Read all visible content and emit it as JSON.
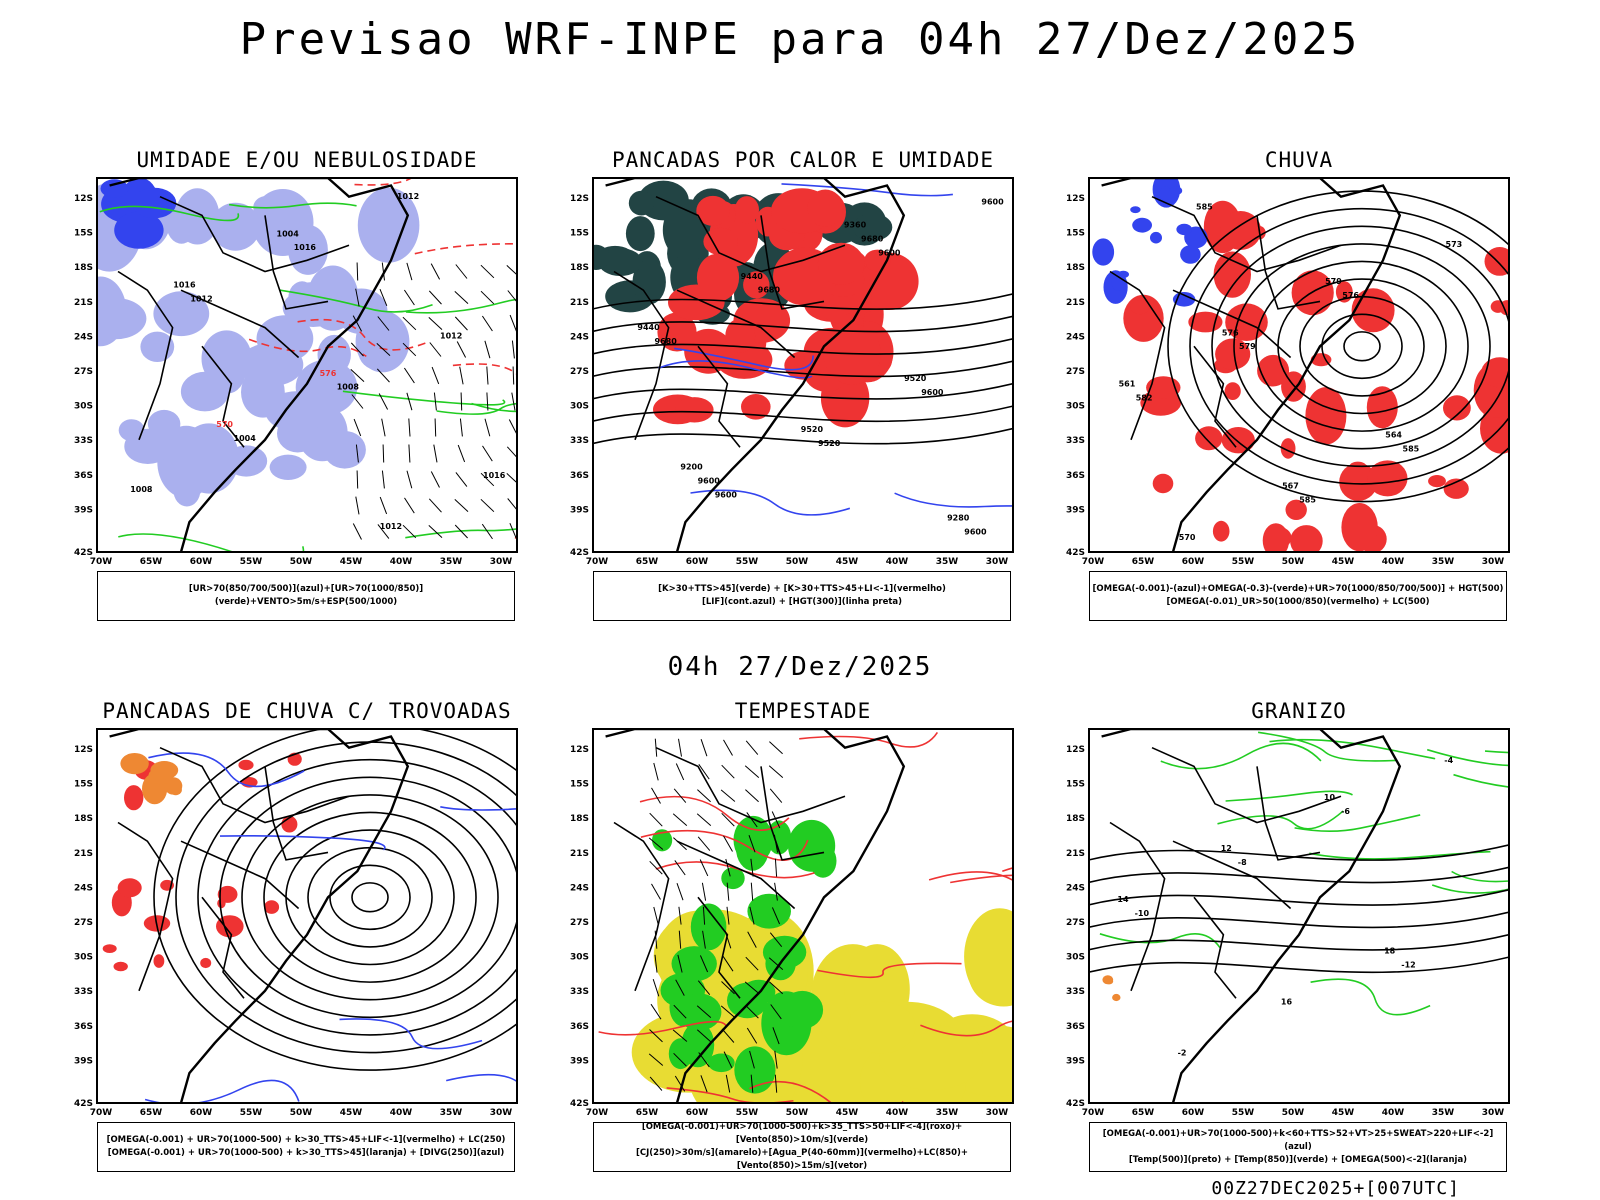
{
  "header": {
    "title": "Previsao WRF-INPE  para 04h 27/Dez/2025",
    "mid_title": "04h 27/Dez/2025",
    "footer": "00Z27DEC2025+[007UTC]"
  },
  "axes": {
    "lat_ticks": [
      "12S",
      "15S",
      "18S",
      "21S",
      "24S",
      "27S",
      "30S",
      "33S",
      "36S",
      "39S",
      "42S"
    ],
    "lon_ticks": [
      "70W",
      "65W",
      "60W",
      "55W",
      "50W",
      "45W",
      "40W",
      "35W",
      "30W"
    ]
  },
  "colors": {
    "blue": "#3344ee",
    "light_blue": "#aab0ee",
    "green": "#22cc22",
    "red": "#ee3333",
    "dark_teal": "#224444",
    "orange": "#ee8833",
    "yellow": "#e8dc33"
  },
  "panels": [
    {
      "title": "UMIDADE E/OU NEBULOSIDADE",
      "legend": [
        "[UR>70(850/700/500)](azul)+[UR>70(1000/850)](verde)+VENTO>5m/s+ESP(500/1000)"
      ],
      "contour_labels": [
        "1012",
        "1016",
        "1012",
        "1008",
        "1004",
        "1008",
        "1012",
        "1016",
        "1004",
        "1012",
        "1016",
        "570",
        "576"
      ]
    },
    {
      "title": "PANCADAS POR CALOR E UMIDADE",
      "legend": [
        "[K>30+TTS>45](verde) + [K>30+TTS>45+LI<-1](vermelho)",
        "[LIF](cont.azul) + [HGT(300)](linha preta)"
      ],
      "contour_labels": [
        "9600",
        "9600",
        "9600",
        "9520",
        "9600",
        "9680",
        "9680",
        "9680",
        "9600",
        "9600",
        "9520",
        "9520",
        "9440",
        "9440",
        "9360",
        "9280",
        "9200"
      ]
    },
    {
      "title": "CHUVA",
      "legend": [
        "[OMEGA(-0.001)-(azul)+OMEGA(-0.3)-(verde)+UR>70(1000/850/700/500)] + HGT(500)",
        "[OMEGA(-0.01)_UR>50(1000/850)(vermelho) + LC(500)"
      ],
      "contour_labels": [
        "585",
        "585",
        "585",
        "582",
        "579",
        "576",
        "573",
        "570",
        "567",
        "564",
        "561",
        "576",
        "579"
      ]
    },
    {
      "title": "PANCADAS DE CHUVA C/ TROVOADAS",
      "legend": [
        "[OMEGA(-0.001) + UR>70(1000-500) + k>30_TTS>45+LIF<-1](vermelho) + LC(250)",
        "[OMEGA(-0.001) + UR>70(1000-500) + k>30_TTS>45](laranja) + [DIVG(250)](azul)"
      ],
      "contour_labels": []
    },
    {
      "title": "TEMPESTADE",
      "legend": [
        "[OMEGA(-0.001)+UR>70(1000-500)+k>35_TTS>50+LIF<-4](roxo)+[Vento(850)>10m/s](verde)",
        "[CJ(250)>30m/s](amarelo)+[Agua_P(40-60mm)](vermelho)+LC(850)+[Vento(850)>15m/s](vetor)"
      ],
      "contour_labels": []
    },
    {
      "title": "GRANIZO",
      "legend": [
        "[OMEGA(-0.001)+UR>70(1000-500)+k<60+TTS>52+VT>25+SWEAT>220+LIF<-2](azul)",
        "[Temp(500)](preto) + [Temp(850)](verde) + [OMEGA(500)<-2](laranja)"
      ],
      "contour_labels": [
        "-12",
        "-10",
        "-8",
        "-6",
        "-4",
        "-2",
        "16",
        "18",
        "14",
        "12",
        "10"
      ]
    }
  ]
}
